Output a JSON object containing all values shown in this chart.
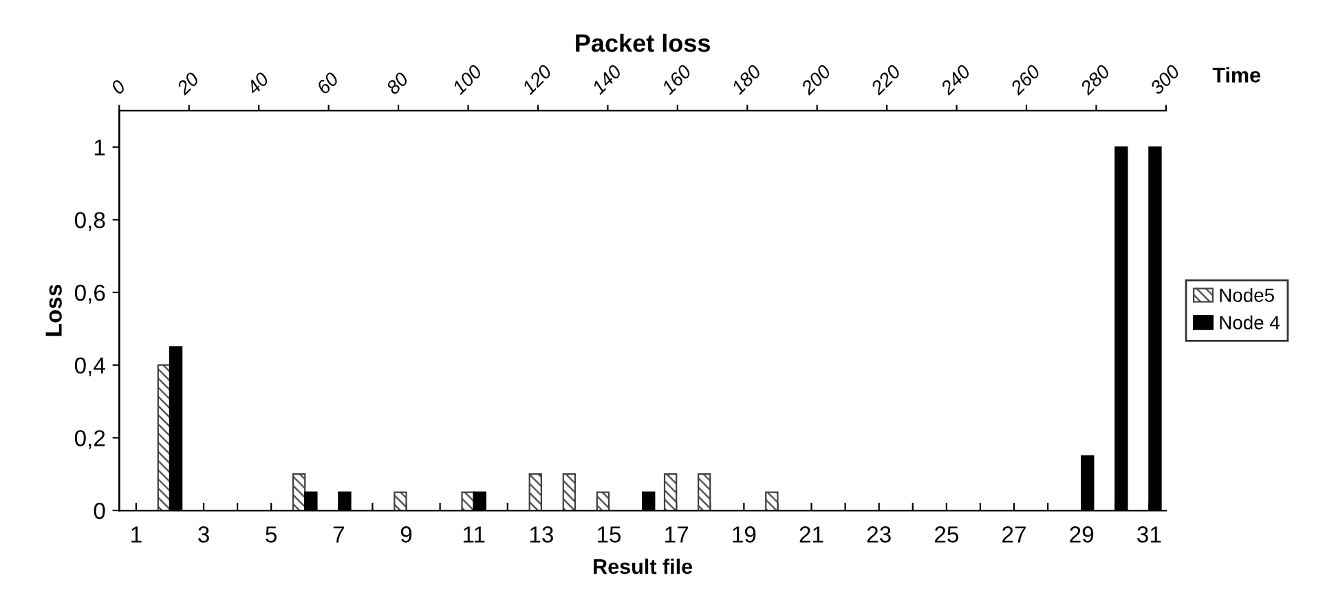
{
  "chart_data": {
    "type": "bar",
    "title": "Packet loss",
    "xlabel": "Result file",
    "ylabel": "Loss",
    "x2label": "Time",
    "categories": [
      "1",
      null,
      "3",
      null,
      "5",
      null,
      "7",
      null,
      "9",
      null,
      "11",
      null,
      "13",
      null,
      "15",
      null,
      "17",
      null,
      "19",
      null,
      "21",
      null,
      "23",
      null,
      "25",
      null,
      "27",
      null,
      "29",
      null,
      "31"
    ],
    "series": [
      {
        "name": "Node5",
        "color": "#404040",
        "values": [
          0,
          0.4,
          0,
          0,
          0,
          0.1,
          0,
          0,
          0.05,
          0,
          0.05,
          0,
          0.1,
          0.1,
          0.05,
          0,
          0.1,
          0.1,
          0,
          0.05,
          0,
          0,
          0,
          0,
          0,
          0,
          0,
          0,
          0,
          0,
          0
        ]
      },
      {
        "name": "Node 4",
        "color": "#000000",
        "values": [
          0,
          0.45,
          0,
          0,
          0,
          0.05,
          0.05,
          0,
          0,
          0,
          0.05,
          0,
          0,
          0,
          0,
          0.05,
          0,
          0,
          0,
          0,
          0,
          0,
          0,
          0,
          0,
          0,
          0,
          0,
          0.15,
          1,
          1
        ]
      }
    ],
    "ylim": [
      0,
      1.1
    ],
    "yticks": [
      0,
      {
        "value": 0.2,
        "label": "0,2"
      },
      {
        "value": 0.4,
        "label": "0,4"
      },
      {
        "value": 0.6,
        "label": "0,6"
      },
      {
        "value": 0.8,
        "label": "0,8"
      },
      1
    ],
    "x2lim": [
      0,
      300
    ],
    "x2ticks": [
      0,
      20,
      40,
      60,
      80,
      100,
      120,
      140,
      160,
      180,
      200,
      220,
      240,
      260,
      280,
      300
    ],
    "grid": false,
    "legend": "right"
  }
}
